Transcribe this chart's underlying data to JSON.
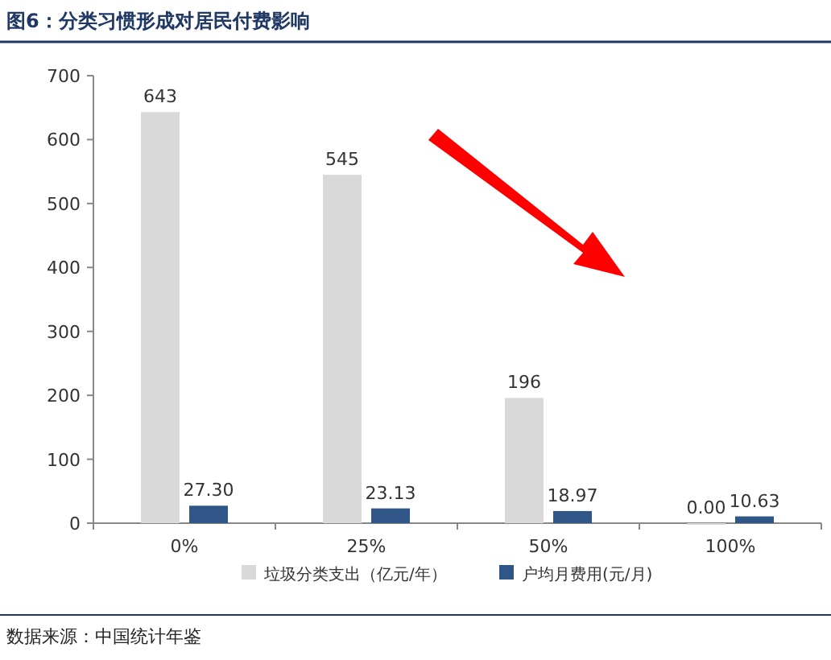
{
  "chart_data": {
    "type": "bar",
    "title": "图6：分类习惯形成对居民付费影响",
    "categories": [
      "0%",
      "25%",
      "50%",
      "100%"
    ],
    "series": [
      {
        "name": "垃圾分类支出（亿元/年）",
        "color": "#d9d9d9",
        "values": [
          643,
          545,
          196,
          0
        ],
        "value_labels": [
          "643",
          "545",
          "196",
          "0.00"
        ]
      },
      {
        "name": "户均月费用(元/月)",
        "color": "#2f5686",
        "values": [
          27.3,
          23.13,
          18.97,
          10.63
        ],
        "value_labels": [
          "27.30",
          "23.13",
          "18.97",
          "10.63"
        ]
      }
    ],
    "ylim": [
      0,
      700
    ],
    "yticks": [
      0,
      100,
      200,
      300,
      400,
      500,
      600,
      700
    ],
    "legend": "bottom",
    "grid": false,
    "annotations": [
      "数据来源：中国统计年鉴"
    ]
  }
}
